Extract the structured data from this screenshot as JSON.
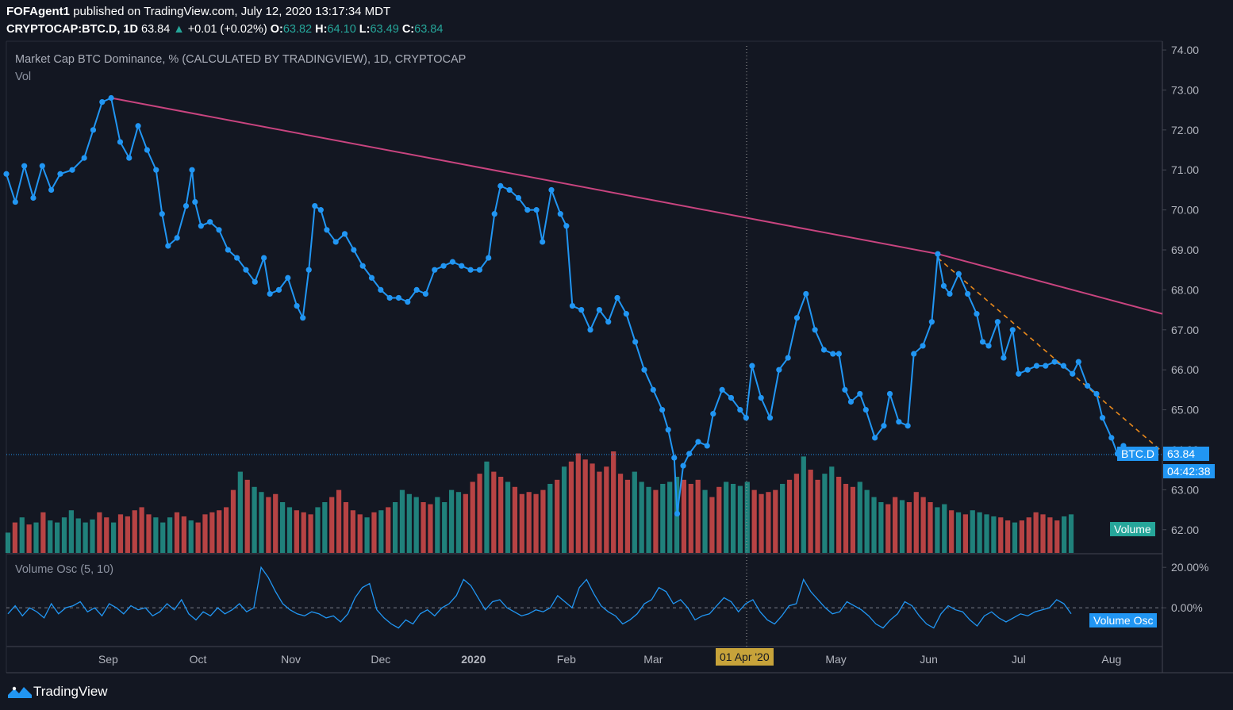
{
  "header": {
    "author": "FOFAgent1",
    "published": "published on TradingView.com, July 12, 2020 13:17:34 MDT",
    "symbol": "CRYPTOCAP:BTC.D, 1D",
    "last": "63.84",
    "change": "+0.01 (+0.02%)",
    "o_label": "O:",
    "o": "63.82",
    "h_label": "H:",
    "h": "64.10",
    "l_label": "L:",
    "l": "63.49",
    "c_label": "C:",
    "c": "63.84"
  },
  "main_pane": {
    "title": "Market Cap BTC Dominance, % (CALCULATED BY TRADINGVIEW), 1D, CRYPTOCAP",
    "sub": "Vol"
  },
  "osc_pane": {
    "title": "Volume Osc (5, 10)"
  },
  "tags": {
    "symbol_tag": "BTC.D",
    "price_tag": "63.84",
    "countdown": "04:42:38",
    "volume_tag": "Volume",
    "osc_tag": "Volume Osc",
    "crosshair_date": "01 Apr '20"
  },
  "footer": {
    "brand": "TradingView"
  },
  "colors": {
    "background": "#131722",
    "price_line": "#2196f3",
    "trendline": "#c8447f",
    "dashed_trend": "#e8891c",
    "vol_up": "#26a69a",
    "vol_down": "#ef5350",
    "axis_text": "#b2b5be",
    "crosshair_label": "#c7a33a"
  },
  "chart_data": [
    {
      "type": "line",
      "title": "Market Cap BTC Dominance, % (CALCULATED BY TRADINGVIEW), 1D, CRYPTOCAP",
      "x_ticks": [
        "Sep",
        "Oct",
        "Nov",
        "Dec",
        "2020",
        "Feb",
        "Mar",
        "01 Apr '20",
        "May",
        "Jun",
        "Jul",
        "Aug"
      ],
      "y_ticks": [
        "62.00",
        "63.00",
        "64.00",
        "65.00",
        "66.00",
        "67.00",
        "68.00",
        "69.00",
        "70.00",
        "71.00",
        "72.00",
        "73.00",
        "74.00"
      ],
      "ylim": [
        61.4,
        74.1
      ],
      "x_range": [
        "2019-07-29",
        "2020-08-18"
      ],
      "series": [
        {
          "name": "BTC.D",
          "points": [
            [
              "2019-07-29",
              70.9
            ],
            [
              "2019-08-01",
              70.2
            ],
            [
              "2019-08-04",
              71.1
            ],
            [
              "2019-08-07",
              70.3
            ],
            [
              "2019-08-10",
              71.1
            ],
            [
              "2019-08-13",
              70.5
            ],
            [
              "2019-08-16",
              70.9
            ],
            [
              "2019-08-20",
              71.0
            ],
            [
              "2019-08-24",
              71.3
            ],
            [
              "2019-08-27",
              72.0
            ],
            [
              "2019-08-30",
              72.7
            ],
            [
              "2019-09-02",
              72.8
            ],
            [
              "2019-09-05",
              71.7
            ],
            [
              "2019-09-08",
              71.3
            ],
            [
              "2019-09-11",
              72.1
            ],
            [
              "2019-09-14",
              71.5
            ],
            [
              "2019-09-17",
              71.0
            ],
            [
              "2019-09-19",
              69.9
            ],
            [
              "2019-09-21",
              69.1
            ],
            [
              "2019-09-24",
              69.3
            ],
            [
              "2019-09-27",
              70.1
            ],
            [
              "2019-09-29",
              71.0
            ],
            [
              "2019-09-30",
              70.2
            ],
            [
              "2019-10-02",
              69.6
            ],
            [
              "2019-10-05",
              69.7
            ],
            [
              "2019-10-08",
              69.5
            ],
            [
              "2019-10-11",
              69.0
            ],
            [
              "2019-10-14",
              68.8
            ],
            [
              "2019-10-17",
              68.5
            ],
            [
              "2019-10-20",
              68.2
            ],
            [
              "2019-10-23",
              68.8
            ],
            [
              "2019-10-25",
              67.9
            ],
            [
              "2019-10-28",
              68.0
            ],
            [
              "2019-10-31",
              68.3
            ],
            [
              "2019-11-03",
              67.6
            ],
            [
              "2019-11-05",
              67.3
            ],
            [
              "2019-11-07",
              68.5
            ],
            [
              "2019-11-09",
              70.1
            ],
            [
              "2019-11-11",
              70.0
            ],
            [
              "2019-11-13",
              69.5
            ],
            [
              "2019-11-16",
              69.2
            ],
            [
              "2019-11-19",
              69.4
            ],
            [
              "2019-11-22",
              69.0
            ],
            [
              "2019-11-25",
              68.6
            ],
            [
              "2019-11-28",
              68.3
            ],
            [
              "2019-12-01",
              68.0
            ],
            [
              "2019-12-04",
              67.8
            ],
            [
              "2019-12-07",
              67.8
            ],
            [
              "2019-12-10",
              67.7
            ],
            [
              "2019-12-13",
              68.0
            ],
            [
              "2019-12-16",
              67.9
            ],
            [
              "2019-12-19",
              68.5
            ],
            [
              "2019-12-22",
              68.6
            ],
            [
              "2019-12-25",
              68.7
            ],
            [
              "2019-12-28",
              68.6
            ],
            [
              "2019-12-31",
              68.5
            ],
            [
              "2020-01-03",
              68.5
            ],
            [
              "2020-01-06",
              68.8
            ],
            [
              "2020-01-08",
              69.9
            ],
            [
              "2020-01-10",
              70.6
            ],
            [
              "2020-01-13",
              70.5
            ],
            [
              "2020-01-16",
              70.3
            ],
            [
              "2020-01-19",
              70.0
            ],
            [
              "2020-01-22",
              70.0
            ],
            [
              "2020-01-24",
              69.2
            ],
            [
              "2020-01-27",
              70.5
            ],
            [
              "2020-01-30",
              69.9
            ],
            [
              "2020-02-01",
              69.6
            ],
            [
              "2020-02-03",
              67.6
            ],
            [
              "2020-02-06",
              67.5
            ],
            [
              "2020-02-09",
              67.0
            ],
            [
              "2020-02-12",
              67.5
            ],
            [
              "2020-02-15",
              67.2
            ],
            [
              "2020-02-18",
              67.8
            ],
            [
              "2020-02-21",
              67.4
            ],
            [
              "2020-02-24",
              66.7
            ],
            [
              "2020-02-27",
              66.0
            ],
            [
              "2020-03-01",
              65.5
            ],
            [
              "2020-03-04",
              65.0
            ],
            [
              "2020-03-06",
              64.5
            ],
            [
              "2020-03-08",
              63.8
            ],
            [
              "2020-03-09",
              62.4
            ],
            [
              "2020-03-11",
              63.6
            ],
            [
              "2020-03-13",
              63.9
            ],
            [
              "2020-03-16",
              64.2
            ],
            [
              "2020-03-19",
              64.1
            ],
            [
              "2020-03-21",
              64.9
            ],
            [
              "2020-03-24",
              65.5
            ],
            [
              "2020-03-27",
              65.3
            ],
            [
              "2020-03-30",
              65.0
            ],
            [
              "2020-04-01",
              64.8
            ],
            [
              "2020-04-03",
              66.1
            ],
            [
              "2020-04-06",
              65.3
            ],
            [
              "2020-04-09",
              64.8
            ],
            [
              "2020-04-12",
              66.0
            ],
            [
              "2020-04-15",
              66.3
            ],
            [
              "2020-04-18",
              67.3
            ],
            [
              "2020-04-21",
              67.9
            ],
            [
              "2020-04-24",
              67.0
            ],
            [
              "2020-04-27",
              66.5
            ],
            [
              "2020-04-30",
              66.4
            ],
            [
              "2020-05-02",
              66.4
            ],
            [
              "2020-05-04",
              65.5
            ],
            [
              "2020-05-06",
              65.2
            ],
            [
              "2020-05-09",
              65.4
            ],
            [
              "2020-05-11",
              65.0
            ],
            [
              "2020-05-14",
              64.3
            ],
            [
              "2020-05-17",
              64.6
            ],
            [
              "2020-05-19",
              65.4
            ],
            [
              "2020-05-22",
              64.7
            ],
            [
              "2020-05-25",
              64.6
            ],
            [
              "2020-05-27",
              66.4
            ],
            [
              "2020-05-30",
              66.6
            ],
            [
              "2020-06-02",
              67.2
            ],
            [
              "2020-06-04",
              68.9
            ],
            [
              "2020-06-06",
              68.1
            ],
            [
              "2020-06-08",
              67.9
            ],
            [
              "2020-06-11",
              68.4
            ],
            [
              "2020-06-14",
              67.9
            ],
            [
              "2020-06-17",
              67.4
            ],
            [
              "2020-06-19",
              66.7
            ],
            [
              "2020-06-21",
              66.6
            ],
            [
              "2020-06-24",
              67.2
            ],
            [
              "2020-06-26",
              66.3
            ],
            [
              "2020-06-29",
              67.0
            ],
            [
              "2020-07-01",
              65.9
            ],
            [
              "2020-07-04",
              66.0
            ],
            [
              "2020-07-07",
              66.1
            ],
            [
              "2020-07-10",
              66.1
            ],
            [
              "2020-07-13",
              66.2
            ],
            [
              "2020-07-16",
              66.1
            ],
            [
              "2020-07-19",
              65.9
            ],
            [
              "2020-07-21",
              66.2
            ],
            [
              "2020-07-24",
              65.6
            ],
            [
              "2020-07-27",
              65.4
            ],
            [
              "2020-07-29",
              64.8
            ],
            [
              "2020-08-01",
              64.3
            ],
            [
              "2020-08-03",
              63.9
            ],
            [
              "2020-08-05",
              64.1
            ],
            [
              "2020-08-07",
              63.84
            ]
          ]
        },
        {
          "name": "Trendline",
          "points": [
            [
              "2019-09-02",
              72.8
            ],
            [
              "2020-06-04",
              68.9
            ],
            [
              "2020-08-18",
              67.4
            ]
          ]
        },
        {
          "name": "Dashed trend",
          "points": [
            [
              "2020-06-04",
              68.8
            ],
            [
              "2020-08-18",
              63.95
            ]
          ]
        }
      ],
      "last_value": 63.84
    },
    {
      "type": "bar",
      "title": "Vol",
      "note": "volume histogram in main pane, colored by up/down day",
      "values_rel": [
        0.2,
        0.3,
        0.35,
        0.28,
        0.3,
        0.4,
        0.32,
        0.3,
        0.35,
        0.42,
        0.34,
        0.3,
        0.33,
        0.4,
        0.35,
        0.3,
        0.38,
        0.36,
        0.42,
        0.45,
        0.38,
        0.35,
        0.3,
        0.35,
        0.4,
        0.36,
        0.32,
        0.3,
        0.38,
        0.4,
        0.42,
        0.45,
        0.62,
        0.8,
        0.72,
        0.65,
        0.6,
        0.55,
        0.58,
        0.5,
        0.45,
        0.42,
        0.4,
        0.38,
        0.45,
        0.5,
        0.55,
        0.62,
        0.5,
        0.42,
        0.38,
        0.35,
        0.4,
        0.42,
        0.45,
        0.5,
        0.62,
        0.58,
        0.55,
        0.5,
        0.48,
        0.55,
        0.5,
        0.62,
        0.6,
        0.58,
        0.7,
        0.78,
        0.9,
        0.8,
        0.75,
        0.7,
        0.65,
        0.58,
        0.6,
        0.58,
        0.62,
        0.68,
        0.72,
        0.85,
        0.9,
        0.98,
        0.92,
        0.88,
        0.8,
        0.85,
        1.0,
        0.78,
        0.72,
        0.8,
        0.7,
        0.65,
        0.62,
        0.68,
        0.7,
        0.75,
        0.72,
        0.68,
        0.72,
        0.62,
        0.55,
        0.65,
        0.7,
        0.68,
        0.66,
        0.7,
        0.62,
        0.58,
        0.6,
        0.62,
        0.68,
        0.72,
        0.78,
        0.95,
        0.82,
        0.72,
        0.78,
        0.85,
        0.75,
        0.68,
        0.65,
        0.7,
        0.62,
        0.55,
        0.5,
        0.48,
        0.55,
        0.52,
        0.5,
        0.6,
        0.55,
        0.5,
        0.45,
        0.48,
        0.42,
        0.4,
        0.38,
        0.42,
        0.4,
        0.38,
        0.36,
        0.35,
        0.32,
        0.3,
        0.32,
        0.35,
        0.4,
        0.38,
        0.35,
        0.32,
        0.36,
        0.38
      ],
      "last_bar_up": true
    },
    {
      "type": "line",
      "title": "Volume Osc (5, 10)",
      "y_ticks": [
        "20.00%",
        "0.00%"
      ],
      "ylim": [
        -18,
        24
      ],
      "zero_line": true,
      "series": [
        {
          "name": "Volume Osc",
          "values_pct": [
            -3,
            1,
            -4,
            0,
            -2,
            -5,
            2,
            -3,
            0,
            1,
            3,
            -2,
            0,
            -4,
            2,
            0,
            -3,
            1,
            -1,
            0,
            -4,
            -2,
            2,
            -1,
            4,
            -3,
            -6,
            -2,
            -4,
            0,
            -3,
            -1,
            2,
            -2,
            0,
            20,
            15,
            8,
            2,
            -1,
            -3,
            -4,
            -2,
            -3,
            -5,
            -4,
            -7,
            -3,
            5,
            10,
            12,
            -1,
            -5,
            -8,
            -10,
            -6,
            -8,
            -3,
            -1,
            -4,
            0,
            2,
            6,
            14,
            11,
            5,
            -1,
            3,
            4,
            0,
            -2,
            -4,
            -3,
            -1,
            -2,
            0,
            6,
            3,
            0,
            10,
            14,
            7,
            1,
            -2,
            -4,
            -8,
            -6,
            -3,
            2,
            4,
            10,
            8,
            2,
            4,
            0,
            -6,
            -4,
            -3,
            1,
            5,
            3,
            -2,
            2,
            4,
            -2,
            -6,
            -8,
            -4,
            1,
            2,
            14,
            8,
            4,
            0,
            -3,
            -2,
            3,
            1,
            -1,
            -4,
            -8,
            -10,
            -6,
            -3,
            3,
            1,
            -4,
            -8,
            -10,
            -3,
            1,
            -1,
            -2,
            -6,
            -9,
            -4,
            -2,
            -5,
            -7,
            -5,
            -3,
            -4,
            -2,
            -1,
            0,
            4,
            2,
            -3
          ]
        }
      ]
    }
  ]
}
